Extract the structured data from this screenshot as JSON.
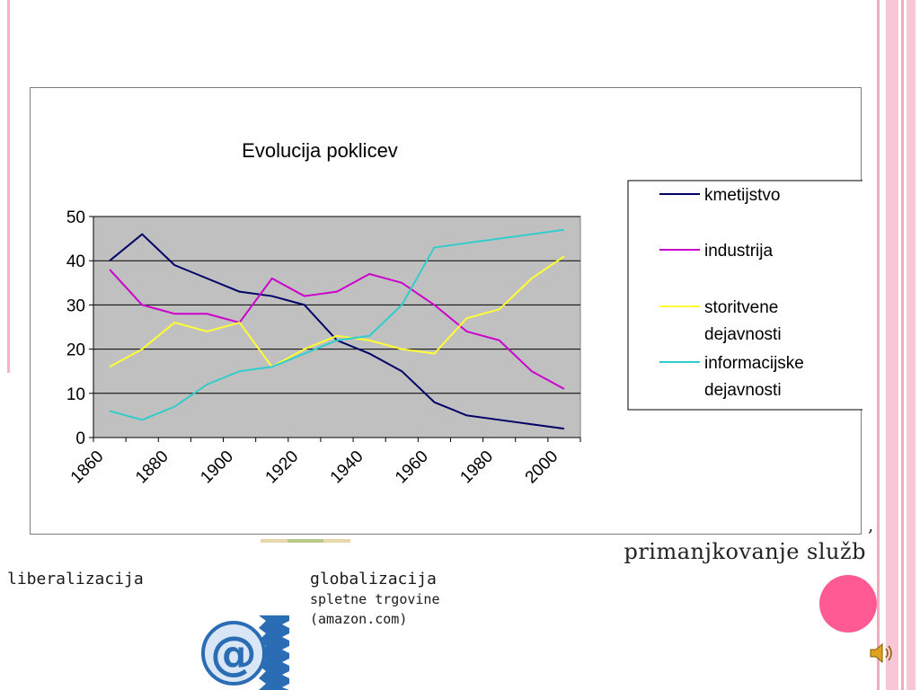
{
  "chart_data": {
    "type": "line",
    "title": "Evolucija poklicev",
    "xlabel": "",
    "ylabel": "",
    "x": [
      1865,
      1875,
      1885,
      1895,
      1905,
      1915,
      1925,
      1935,
      1945,
      1955,
      1965,
      1975,
      1985,
      1995,
      2005
    ],
    "xlim": [
      1860,
      2010
    ],
    "ylim": [
      0,
      50
    ],
    "x_ticks": [
      "1860",
      "1880",
      "1900",
      "1920",
      "1940",
      "1960",
      "1980",
      "2000"
    ],
    "y_ticks": [
      "0",
      "10",
      "20",
      "30",
      "40",
      "50"
    ],
    "grid": true,
    "plot_background": "#c0c0c0",
    "legend_position": "right",
    "series": [
      {
        "name": "kmetijstvo",
        "color": "#000066",
        "values": [
          40,
          46,
          39,
          36,
          33,
          32,
          30,
          22,
          19,
          15,
          8,
          5,
          4,
          3,
          2
        ]
      },
      {
        "name": "industrija",
        "color": "#cc00cc",
        "values": [
          38,
          30,
          28,
          28,
          26,
          36,
          32,
          33,
          37,
          35,
          30,
          24,
          22,
          15,
          11
        ]
      },
      {
        "name": "storitvene dejavnosti",
        "color": "#ffff33",
        "values": [
          16,
          20,
          26,
          24,
          26,
          16,
          20,
          23,
          22,
          20,
          19,
          27,
          29,
          36,
          41
        ]
      },
      {
        "name": "informacijske dejavnosti",
        "color": "#33cccc",
        "values": [
          6,
          4,
          7,
          12,
          15,
          16,
          19,
          22,
          23,
          30,
          43,
          44,
          45,
          46,
          47
        ]
      }
    ],
    "legend_lines": [
      [
        "kmetijstvo"
      ],
      [
        "industrija"
      ],
      [
        "storitvene",
        "dejavnosti"
      ],
      [
        "informacijske",
        "dejavnosti"
      ]
    ]
  },
  "slide": {
    "comma": ",",
    "trailing_text": "primanjkovanje služb",
    "liberalization": "liberalizacija",
    "globalization": {
      "title": "globalizacija",
      "line2": "spletne trgovine",
      "line3": "(amazon.com)"
    }
  },
  "icons": {
    "at_logo": "at-sign-logo-icon",
    "speaker": "speaker-icon",
    "dot": "pink-circle-decoration"
  },
  "colors": {
    "accent_pink": "#ff5a94",
    "stripe_pink": "#f8c7d5",
    "logo_blue": "#2b6db5"
  }
}
